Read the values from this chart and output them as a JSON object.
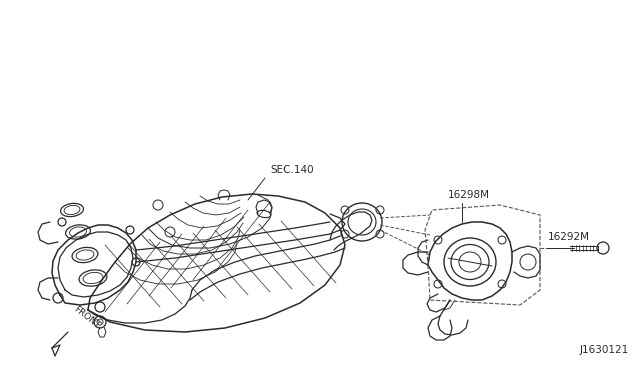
{
  "background_color": "#ffffff",
  "line_color": "#2a2a2a",
  "dash_color": "#555555",
  "label_16298M": "16298M",
  "label_16292M": "16292M",
  "label_sec140": "SEC.140",
  "label_front": "FRONT",
  "label_part_num": "J1630121",
  "line_width": 0.9,
  "figsize": [
    6.4,
    3.72
  ],
  "dpi": 100
}
